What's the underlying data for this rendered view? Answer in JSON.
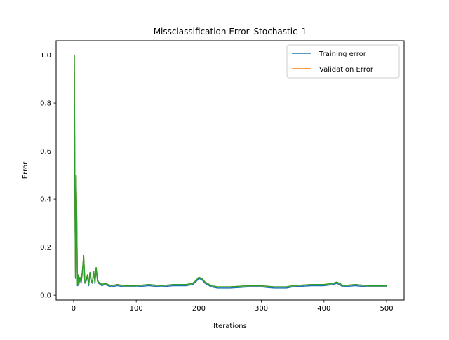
{
  "chart_data": {
    "type": "line",
    "title": "Missclassification Error_Stochastic_1",
    "xlabel": "Iterations",
    "ylabel": "Error",
    "xlim": [
      -28,
      528
    ],
    "ylim": [
      -0.02,
      1.06
    ],
    "xticks": [
      0,
      100,
      200,
      300,
      400,
      500
    ],
    "yticks": [
      0.0,
      0.2,
      0.4,
      0.6,
      0.8,
      1.0
    ],
    "ytick_labels": [
      "0.0",
      "0.2",
      "0.4",
      "0.6",
      "0.8",
      "1.0"
    ],
    "grid": false,
    "legend_position": "top-right",
    "legend": [
      {
        "label": "Training error",
        "color": "#1f77b4"
      },
      {
        "label": "Validation Error",
        "color": "#ff7f0e"
      }
    ],
    "series": [
      {
        "name": "Training error",
        "color": "#1f77b4",
        "x": [
          0,
          1,
          2,
          3,
          4,
          5,
          6,
          7,
          8,
          10,
          12,
          14,
          16,
          18,
          20,
          22,
          24,
          26,
          28,
          30,
          32,
          34,
          36,
          38,
          40,
          45,
          50,
          60,
          70,
          80,
          100,
          120,
          140,
          160,
          180,
          190,
          195,
          200,
          205,
          210,
          220,
          230,
          250,
          280,
          300,
          320,
          340,
          350,
          380,
          400,
          415,
          420,
          425,
          430,
          450,
          470,
          500
        ],
        "y": [
          1.0,
          1.0,
          0.42,
          0.07,
          0.49,
          0.3,
          0.04,
          0.08,
          0.04,
          0.07,
          0.05,
          0.1,
          0.16,
          0.05,
          0.06,
          0.08,
          0.04,
          0.09,
          0.06,
          0.05,
          0.1,
          0.05,
          0.11,
          0.06,
          0.05,
          0.04,
          0.045,
          0.035,
          0.04,
          0.035,
          0.035,
          0.04,
          0.035,
          0.04,
          0.04,
          0.045,
          0.055,
          0.07,
          0.065,
          0.05,
          0.035,
          0.03,
          0.03,
          0.035,
          0.035,
          0.03,
          0.03,
          0.035,
          0.04,
          0.04,
          0.045,
          0.05,
          0.045,
          0.035,
          0.04,
          0.035,
          0.035
        ]
      },
      {
        "name": "Validation Error",
        "color": "#ff7f0e",
        "x": [
          0,
          1,
          2,
          3,
          4,
          5,
          6,
          7,
          8,
          10,
          12,
          14,
          16,
          18,
          20,
          22,
          24,
          26,
          28,
          30,
          32,
          34,
          36,
          38,
          40,
          45,
          50,
          60,
          70,
          80,
          100,
          120,
          140,
          160,
          180,
          190,
          195,
          200,
          205,
          210,
          220,
          230,
          250,
          280,
          300,
          320,
          340,
          350,
          380,
          400,
          415,
          420,
          425,
          430,
          450,
          470,
          500
        ],
        "y": [
          1.0,
          1.0,
          0.43,
          0.075,
          0.5,
          0.3,
          0.045,
          0.085,
          0.045,
          0.075,
          0.055,
          0.1,
          0.165,
          0.055,
          0.065,
          0.085,
          0.045,
          0.095,
          0.065,
          0.055,
          0.1,
          0.055,
          0.115,
          0.065,
          0.055,
          0.045,
          0.05,
          0.04,
          0.045,
          0.04,
          0.04,
          0.045,
          0.04,
          0.045,
          0.045,
          0.05,
          0.06,
          0.075,
          0.07,
          0.055,
          0.04,
          0.035,
          0.035,
          0.04,
          0.04,
          0.035,
          0.035,
          0.04,
          0.045,
          0.045,
          0.05,
          0.055,
          0.05,
          0.04,
          0.045,
          0.04,
          0.04
        ]
      },
      {
        "name": "",
        "color": "#2ca02c",
        "x": [
          0,
          1,
          2,
          3,
          4,
          5,
          6,
          7,
          8,
          10,
          12,
          14,
          16,
          18,
          20,
          22,
          24,
          26,
          28,
          30,
          32,
          34,
          36,
          38,
          40,
          45,
          50,
          60,
          70,
          80,
          100,
          120,
          140,
          160,
          180,
          190,
          195,
          200,
          205,
          210,
          220,
          230,
          250,
          280,
          300,
          320,
          340,
          350,
          380,
          400,
          415,
          420,
          425,
          430,
          450,
          470,
          500
        ],
        "y": [
          1.0,
          1.0,
          0.43,
          0.075,
          0.5,
          0.3,
          0.045,
          0.085,
          0.045,
          0.075,
          0.055,
          0.1,
          0.165,
          0.055,
          0.065,
          0.085,
          0.045,
          0.095,
          0.065,
          0.055,
          0.1,
          0.055,
          0.115,
          0.065,
          0.055,
          0.045,
          0.05,
          0.04,
          0.045,
          0.04,
          0.04,
          0.045,
          0.04,
          0.045,
          0.045,
          0.05,
          0.06,
          0.075,
          0.07,
          0.055,
          0.04,
          0.035,
          0.035,
          0.04,
          0.04,
          0.035,
          0.035,
          0.04,
          0.045,
          0.045,
          0.05,
          0.055,
          0.05,
          0.04,
          0.045,
          0.04,
          0.04
        ]
      }
    ]
  }
}
